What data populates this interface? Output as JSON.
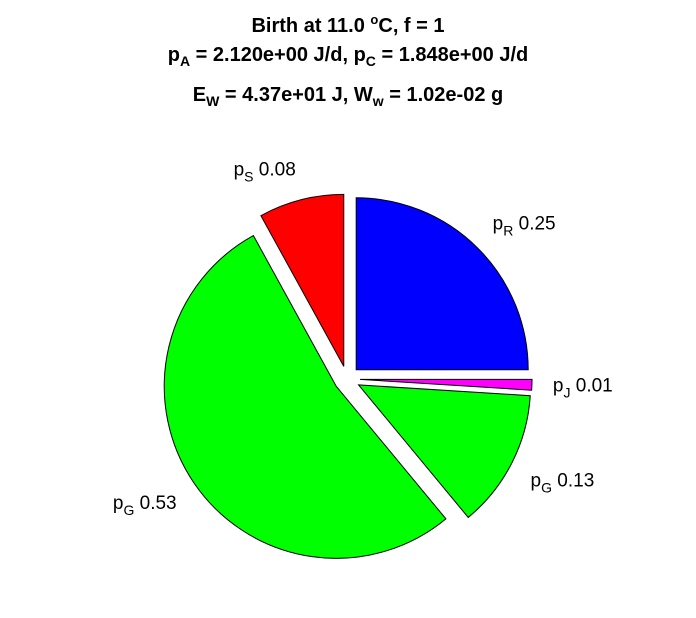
{
  "title": {
    "line1": {
      "pre": "Birth at 11.0 ",
      "sup": "o",
      "post": "C, f = 1"
    },
    "line2": {
      "a_sym": "p",
      "a_sub": "A",
      "a_val": " = 2.120e+00 J/d, ",
      "c_sym": "p",
      "c_sub": "C",
      "c_val": " = 1.848e+00 J/d"
    },
    "line3": {
      "e_sym": "E",
      "e_sub": "W",
      "e_val": " = 4.37e+01 J, ",
      "w_sym": "W",
      "w_sub": "w",
      "w_val": " = 1.02e-02 g"
    }
  },
  "chart_data": {
    "type": "pie",
    "start_angle_deg": 90,
    "direction": "clockwise",
    "exploded": true,
    "slices": [
      {
        "sym": "p",
        "sub": "R",
        "value": 0.25,
        "value_label": "0.25",
        "color": "#0000ff"
      },
      {
        "sym": "p",
        "sub": "J",
        "value": 0.01,
        "value_label": "0.01",
        "color": "#ff00ff"
      },
      {
        "sym": "p",
        "sub": "G",
        "value": 0.13,
        "value_label": "0.13",
        "color": "#00ff00"
      },
      {
        "sym": "p",
        "sub": "G",
        "value": 0.53,
        "value_label": "0.53",
        "color": "#00ff00"
      },
      {
        "sym": "p",
        "sub": "S",
        "value": 0.08,
        "value_label": "0.08",
        "color": "#ff0000"
      }
    ]
  }
}
